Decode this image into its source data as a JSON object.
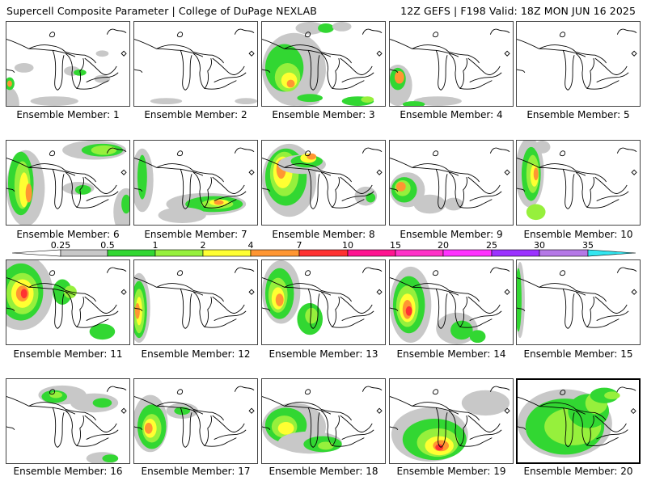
{
  "header": {
    "left": "Supercell Composite Parameter | College of DuPage NEXLAB",
    "right": "12Z GEFS | F198 Valid: 18Z MON JUN 16 2025"
  },
  "colorbar": {
    "labels": [
      "0.25",
      "0.5",
      "1",
      "2",
      "4",
      "7",
      "10",
      "15",
      "20",
      "25",
      "30",
      "35"
    ],
    "colors": [
      "#c8c8c8",
      "#32d732",
      "#96f03c",
      "#ffff32",
      "#ff9632",
      "#ff3232",
      "#ff1491",
      "#ff32c8",
      "#ff32ff",
      "#9b32ff",
      "#b478e6",
      "#32e6f0"
    ]
  },
  "members": [
    {
      "label": "Ensemble Member: 1"
    },
    {
      "label": "Ensemble Member: 2"
    },
    {
      "label": "Ensemble Member: 3"
    },
    {
      "label": "Ensemble Member: 4"
    },
    {
      "label": "Ensemble Member: 5"
    },
    {
      "label": "Ensemble Member: 6"
    },
    {
      "label": "Ensemble Member: 7"
    },
    {
      "label": "Ensemble Member: 8"
    },
    {
      "label": "Ensemble Member: 9"
    },
    {
      "label": "Ensemble Member: 10"
    },
    {
      "label": "Ensemble Member: 11"
    },
    {
      "label": "Ensemble Member: 12"
    },
    {
      "label": "Ensemble Member: 13"
    },
    {
      "label": "Ensemble Member: 14"
    },
    {
      "label": "Ensemble Member: 15"
    },
    {
      "label": "Ensemble Member: 16"
    },
    {
      "label": "Ensemble Member: 17"
    },
    {
      "label": "Ensemble Member: 18"
    },
    {
      "label": "Ensemble Member: 19"
    },
    {
      "label": "Ensemble Member: 20"
    }
  ]
}
